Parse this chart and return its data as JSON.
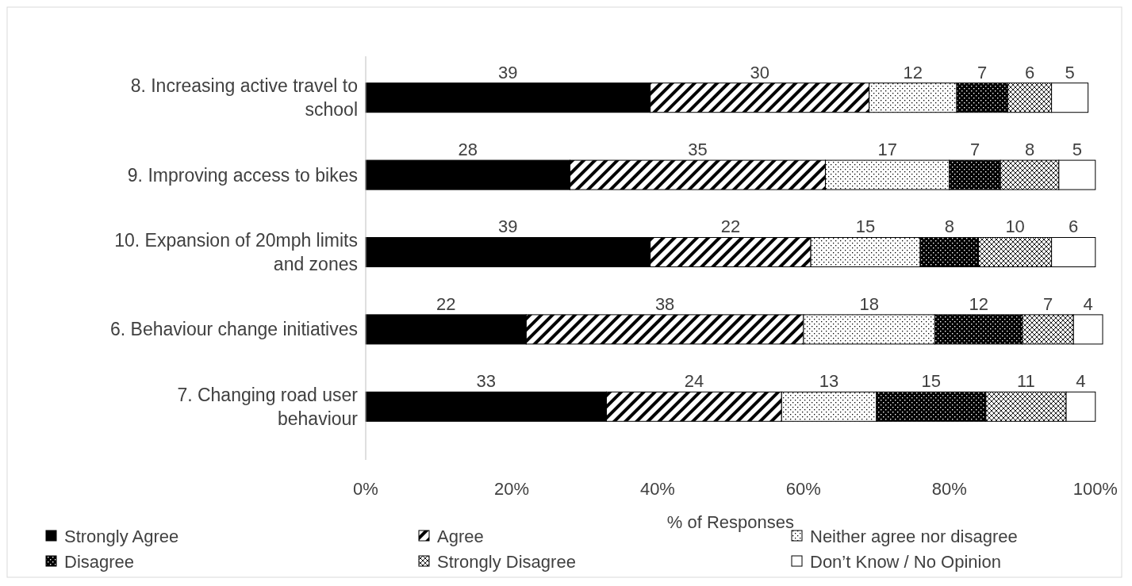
{
  "chart_data": {
    "type": "bar",
    "orientation": "horizontal",
    "stacked": true,
    "xlabel": "% of Responses",
    "categories": [
      "8. Increasing active travel to school",
      "9. Improving access to bikes",
      "10. Expansion of 20mph limits and zones",
      "6. Behaviour change initiatives",
      "7. Changing road user behaviour"
    ],
    "series": [
      {
        "name": "Strongly Agree",
        "color": "#000000",
        "values": [
          39,
          28,
          39,
          22,
          33
        ]
      },
      {
        "name": "Agree",
        "color": "#000000",
        "values": [
          30,
          35,
          22,
          38,
          24
        ]
      },
      {
        "name": "Neither agree nor disagree",
        "color": "#000000",
        "values": [
          12,
          17,
          15,
          18,
          13
        ]
      },
      {
        "name": "Disagree",
        "color": "#000000",
        "values": [
          7,
          7,
          8,
          12,
          15
        ]
      },
      {
        "name": "Strongly Disagree",
        "color": "#000000",
        "values": [
          6,
          8,
          10,
          7,
          11
        ]
      },
      {
        "name": "Don’t Know / No Opinion",
        "color": "#ffffff",
        "values": [
          5,
          5,
          6,
          4,
          4
        ]
      }
    ],
    "xlim": [
      0,
      101
    ],
    "xticks": [
      {
        "value": 0,
        "label": "0%"
      },
      {
        "value": 20,
        "label": "20%"
      },
      {
        "value": 40,
        "label": "40%"
      },
      {
        "value": 60,
        "label": "60%"
      },
      {
        "value": 80,
        "label": "80%"
      },
      {
        "value": 100,
        "label": "100%"
      }
    ],
    "data_labels": true,
    "grid": false,
    "legend": "bottom"
  }
}
